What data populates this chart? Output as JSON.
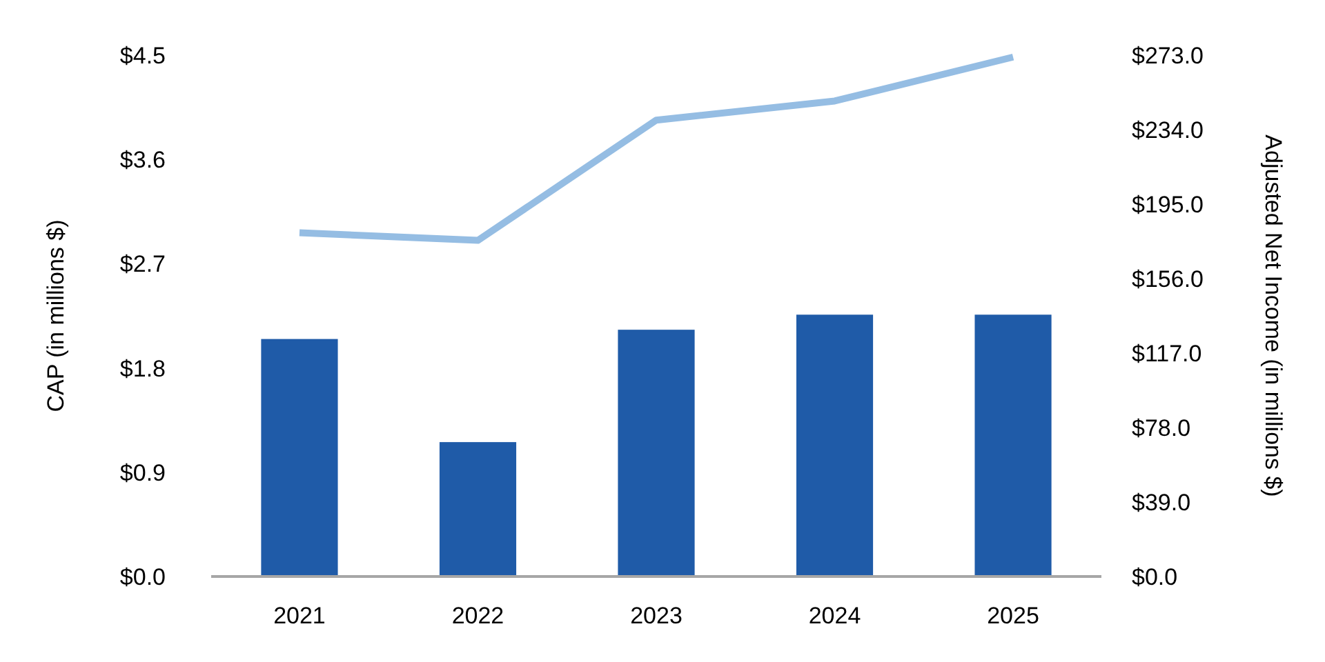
{
  "chart_data": {
    "type": "bar",
    "categories": [
      "2021",
      "2022",
      "2023",
      "2024",
      "2025"
    ],
    "ylabel": "CAP (in millions $)",
    "y2label": "Adjusted Net Income (in millions $)",
    "series": [
      {
        "color": "#1f5ba8",
        "values": [
          2.05,
          1.16,
          2.13,
          2.26,
          2.26
        ]
      },
      {
        "type": "line",
        "axis": "y2",
        "color": "#95bde3",
        "values": [
          180,
          176,
          239,
          249,
          272
        ]
      }
    ],
    "ylim": [
      0,
      4.5
    ],
    "yticks": [
      {
        "value": 0,
        "label": "$0.0"
      },
      {
        "value": 0.9,
        "label": "$0.9"
      },
      {
        "value": 1.8,
        "label": "$1.8"
      },
      {
        "value": 2.7,
        "label": "$2.7"
      },
      {
        "value": 3.6,
        "label": "$3.6"
      },
      {
        "value": 4.5,
        "label": "$4.5"
      }
    ],
    "y2lim": [
      0,
      273
    ],
    "y2ticks": [
      {
        "value": 0,
        "label": "$0.0"
      },
      {
        "value": 39,
        "label": "$39.0"
      },
      {
        "value": 78,
        "label": "$78.0"
      },
      {
        "value": 117,
        "label": "$117.0"
      },
      {
        "value": 156,
        "label": "$156.0"
      },
      {
        "value": 195,
        "label": "$195.0"
      },
      {
        "value": 234,
        "label": "$234.0"
      },
      {
        "value": 273,
        "label": "$273.0"
      }
    ],
    "grid": false,
    "marker": "none",
    "line_style": "solid"
  }
}
